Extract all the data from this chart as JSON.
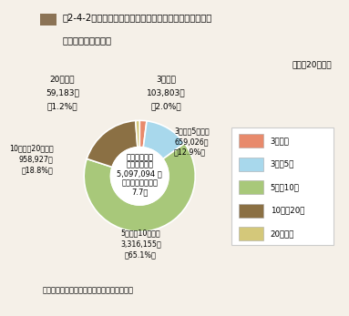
{
  "title_icon_color": "#8B7355",
  "title_prefix": "第2-4-2図",
  "title_line1": "救急自動車による現場到着所要時間別出場件",
  "title_line2": "数の状況",
  "year_label": "（平成20年中）",
  "center_lines": [
    "救急自動車に",
    "よる出場件数",
    "5,097,094 件",
    "現場到着時間平均",
    "7.7分"
  ],
  "note": "（備考）「救急業務実施状況調」により作成",
  "slices": [
    {
      "label_top": "3分未満",
      "label_full": "3分未満",
      "value": 103803,
      "pct": "2.0",
      "color": "#E88A6C"
    },
    {
      "label_top": "3分以上5分未満",
      "label_full": "3分以上5分未満",
      "value": 659026,
      "pct": "12.9",
      "color": "#A8D8EC"
    },
    {
      "label_top": "5分以上10分未満",
      "label_full": "5分以上10分未満",
      "value": 3316155,
      "pct": "65.1",
      "color": "#A8C87A"
    },
    {
      "label_top": "10分以上20分未満",
      "label_full": "10分以上20分未満",
      "value": 958927,
      "pct": "18.8",
      "color": "#8B7044"
    },
    {
      "label_top": "20分以上",
      "label_full": "20分以上",
      "value": 59183,
      "pct": "1.2",
      "color": "#D4C87A"
    }
  ],
  "legend_labels": [
    "3分未満",
    "3分〜5分",
    "5分〜10分",
    "10分〜20分",
    "20分以上"
  ],
  "legend_colors": [
    "#E88A6C",
    "#A8D8EC",
    "#A8C87A",
    "#8B7044",
    "#D4C87A"
  ],
  "bg_color": "#F5F0E8",
  "donut_inner_r": 0.52
}
